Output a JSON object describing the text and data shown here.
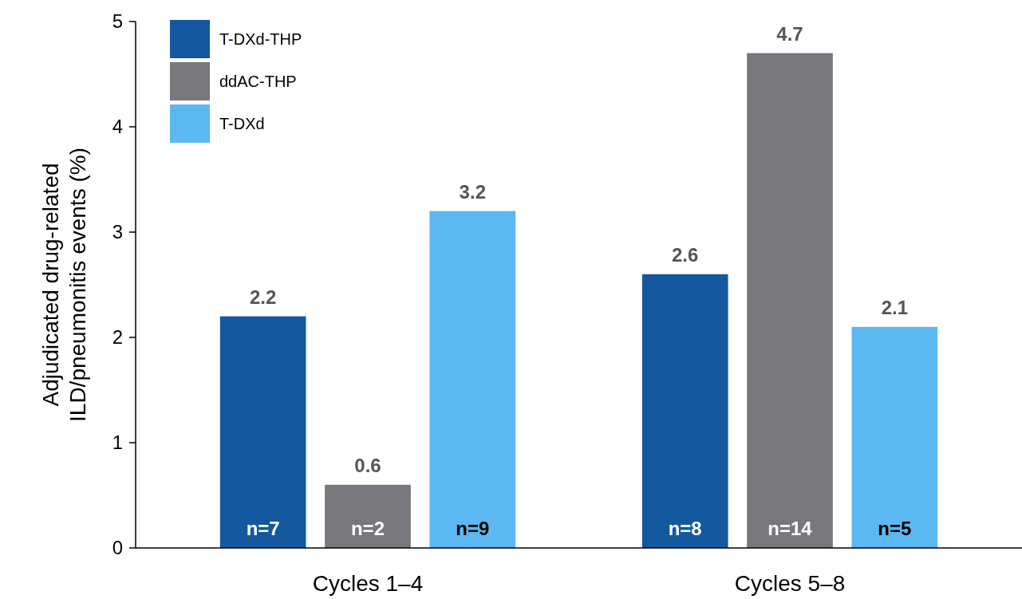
{
  "chart_data": {
    "type": "bar",
    "ylabel": "Adjudicated drug-related ILD/pneumonitis events (%)",
    "categories": [
      "Cycles 1–4",
      "Cycles 5–8"
    ],
    "series": [
      {
        "name": "T-DXd-THP",
        "color": "#1458a0",
        "values": [
          2.2,
          2.6
        ]
      },
      {
        "name": "ddAC-THP",
        "color": "#77777c",
        "values": [
          0.6,
          4.7
        ]
      },
      {
        "name": "T-DXd",
        "color": "#5bb8f0",
        "values": [
          3.2,
          2.1
        ]
      }
    ],
    "annotations": [
      "n=7",
      "n=2",
      "n=9",
      "n=8",
      "n=14",
      "n=5"
    ],
    "data_labels": true,
    "ylim": [
      0,
      5
    ],
    "yticks": [
      0,
      1,
      2,
      3,
      4,
      5
    ],
    "grid": false,
    "legend": "top left"
  }
}
